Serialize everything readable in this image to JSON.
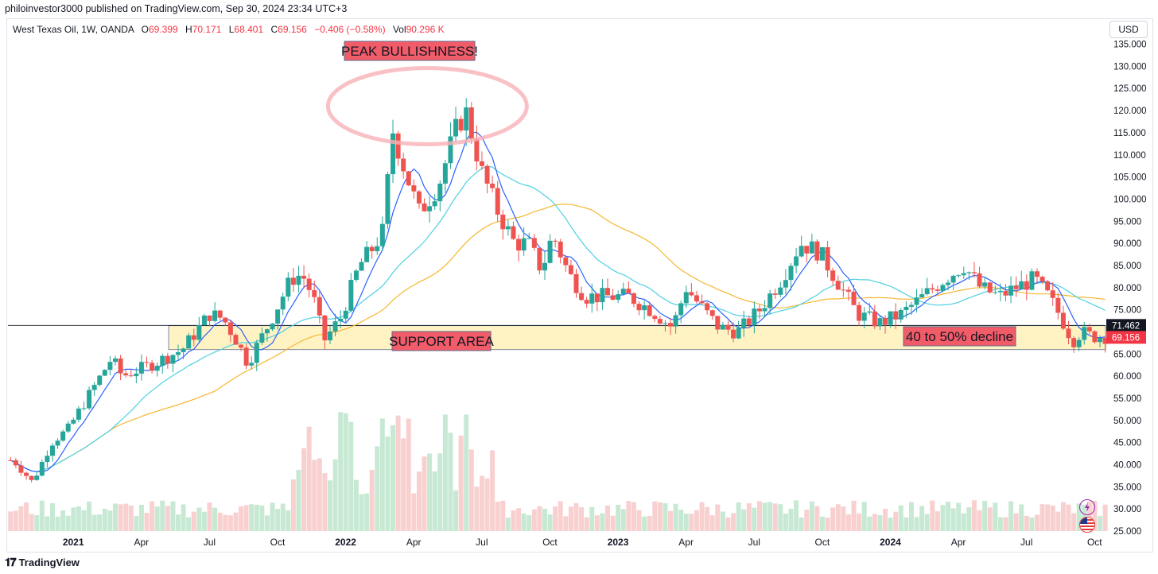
{
  "header": {
    "published": "philoinvestor3000 published on TradingView.com, Sep 30, 2024 23:34 UTC+3"
  },
  "legend": {
    "symbol": "West Texas Oil, 1W, OANDA",
    "o_label": "O",
    "o": "69.399",
    "h_label": "H",
    "h": "70.171",
    "l_label": "L",
    "l": "68.401",
    "c_label": "C",
    "c": "69.156",
    "chg": "−0.406 (−0.58%)",
    "vol_label": "Vol",
    "vol": "90.296 K"
  },
  "currency_button": "USD",
  "footer": {
    "brand": "TradingView"
  },
  "colors": {
    "up": "#26a69a",
    "down": "#ef5350",
    "support_fill": "#fff3c4",
    "annotation_red": "#f23645"
  },
  "chart_data": {
    "type": "candlestick",
    "symbol": "West Texas Oil",
    "interval": "1W",
    "ylim": [
      25,
      136
    ],
    "y_ticks": [
      "135.000",
      "130.000",
      "125.000",
      "120.000",
      "115.000",
      "110.000",
      "105.000",
      "100.000",
      "95.000",
      "90.000",
      "85.000",
      "80.000",
      "75.000",
      "70.000",
      "65.000",
      "60.000",
      "55.000",
      "50.000",
      "45.000",
      "40.000",
      "35.000",
      "30.000",
      "25.000"
    ],
    "x_ticks": [
      "2021",
      "Apr",
      "Jul",
      "Oct",
      "2022",
      "Apr",
      "Jul",
      "Oct",
      "2023",
      "Apr",
      "Jul",
      "Oct",
      "2024",
      "Apr",
      "Jul",
      "Oct"
    ],
    "x_tick_values": [
      2021.0,
      2021.25,
      2021.5,
      2021.75,
      2022.0,
      2022.25,
      2022.5,
      2022.75,
      2023.0,
      2023.25,
      2023.5,
      2023.75,
      2024.0,
      2024.25,
      2024.5,
      2024.75
    ],
    "x_range": [
      2020.76,
      2024.79
    ],
    "price_keypoints": [
      [
        2020.78,
        41
      ],
      [
        2020.85,
        36
      ],
      [
        2020.92,
        45
      ],
      [
        2020.98,
        48
      ],
      [
        2021.08,
        58
      ],
      [
        2021.14,
        64
      ],
      [
        2021.18,
        60
      ],
      [
        2021.3,
        63
      ],
      [
        2021.4,
        66
      ],
      [
        2021.5,
        74
      ],
      [
        2021.55,
        73
      ],
      [
        2021.6,
        68
      ],
      [
        2021.64,
        63
      ],
      [
        2021.72,
        72
      ],
      [
        2021.8,
        82
      ],
      [
        2021.84,
        83
      ],
      [
        2021.88,
        78
      ],
      [
        2021.92,
        68
      ],
      [
        2021.98,
        73
      ],
      [
        2022.05,
        85
      ],
      [
        2022.1,
        89
      ],
      [
        2022.14,
        93
      ],
      [
        2022.17,
        116
      ],
      [
        2022.22,
        106
      ],
      [
        2022.27,
        97
      ],
      [
        2022.34,
        103
      ],
      [
        2022.4,
        115
      ],
      [
        2022.44,
        120
      ],
      [
        2022.5,
        106
      ],
      [
        2022.56,
        97
      ],
      [
        2022.62,
        90
      ],
      [
        2022.67,
        90
      ],
      [
        2022.72,
        84
      ],
      [
        2022.76,
        92
      ],
      [
        2022.82,
        83
      ],
      [
        2022.88,
        78
      ],
      [
        2022.96,
        78
      ],
      [
        2023.04,
        78
      ],
      [
        2023.12,
        75
      ],
      [
        2023.2,
        71
      ],
      [
        2023.25,
        80
      ],
      [
        2023.3,
        76
      ],
      [
        2023.37,
        71
      ],
      [
        2023.44,
        70
      ],
      [
        2023.52,
        75
      ],
      [
        2023.6,
        82
      ],
      [
        2023.67,
        90
      ],
      [
        2023.74,
        88
      ],
      [
        2023.8,
        82
      ],
      [
        2023.88,
        74
      ],
      [
        2023.96,
        72
      ],
      [
        2024.04,
        74
      ],
      [
        2024.12,
        78
      ],
      [
        2024.2,
        82
      ],
      [
        2024.27,
        85
      ],
      [
        2024.33,
        80
      ],
      [
        2024.4,
        78
      ],
      [
        2024.46,
        80
      ],
      [
        2024.53,
        82
      ],
      [
        2024.58,
        78
      ],
      [
        2024.62,
        74
      ],
      [
        2024.67,
        68
      ],
      [
        2024.7,
        70
      ],
      [
        2024.74,
        69
      ]
    ],
    "last_price": 69.156,
    "price_line": 71.462,
    "support_area": [
      66,
      71.4
    ],
    "labels": {
      "last_price": "69.156",
      "price_line": "71.462",
      "peak": "PEAK BULLISHNESS!",
      "support": "SUPPORT AREA",
      "decline": "40 to 50% decline"
    },
    "moving_averages": [
      {
        "color": "#2962ff",
        "kind": "fast"
      },
      {
        "color": "#4dd0e1",
        "kind": "medium"
      },
      {
        "color": "#f5b731",
        "kind": "slow"
      }
    ],
    "volume_panel": {
      "note": "weekly volume bars, spike near 2022 peak"
    }
  }
}
